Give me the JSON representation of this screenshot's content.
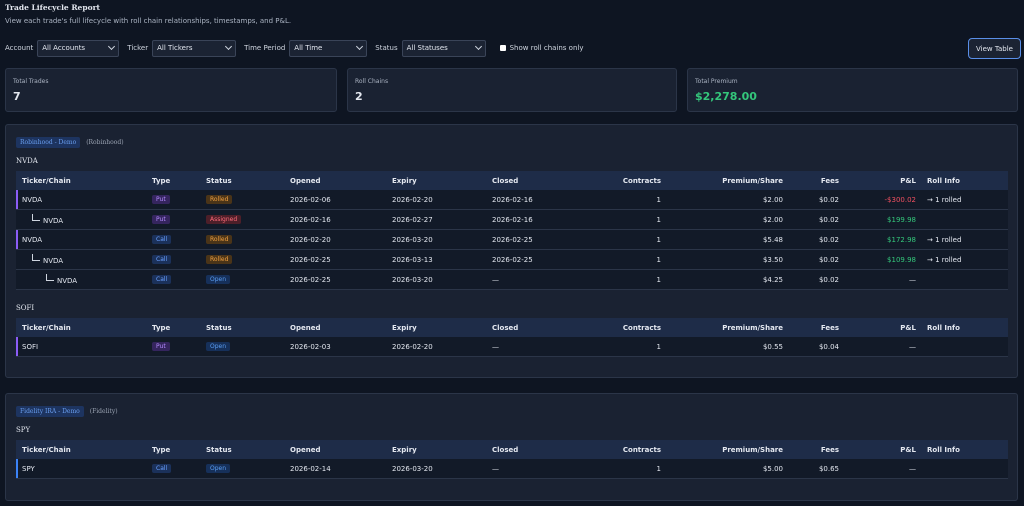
{
  "header": {
    "title": "Trade Lifecycle Report",
    "subtitle": "View each trade's full lifecycle with roll chain relationships, timestamps, and P&L."
  },
  "filters": [
    {
      "label": "Account",
      "value": "All Accounts"
    },
    {
      "label": "Ticker",
      "value": "All Tickers"
    },
    {
      "label": "Time Period",
      "value": "All Time"
    },
    {
      "label": "Status",
      "value": "All Statuses"
    }
  ],
  "checkbox": "Show roll chains only",
  "button": "View Table",
  "stats": [
    {
      "label": "Total Trades",
      "value": 7
    },
    {
      "label": "Roll Chains",
      "value": 2
    },
    {
      "label": "Total Premium",
      "value": "$2,278.00",
      "color": "#34c77b"
    }
  ],
  "columns": [
    "Ticker/Chain",
    "Type",
    "Status",
    "Opened",
    "Expiry",
    "Closed",
    "Contracts",
    "Premium/Share",
    "Fees",
    "P&L",
    "Roll Info"
  ],
  "badge_styles": {
    "Put": [
      "#35255e",
      "#b48cff"
    ],
    "Call": [
      "#1b315a",
      "#6aa0ff"
    ],
    "Rolled": [
      "#4a3418",
      "#f0a040"
    ],
    "Assigned": [
      "#4d1f29",
      "#ff6b7a"
    ],
    "Open": [
      "#16305a",
      "#5a9cf0"
    ]
  },
  "accounts": [
    {
      "name": "Robinhood - Demo",
      "broker": "(Robinhood)",
      "groups": [
        {
          "ticker": "NVDA",
          "rows": [
            {
              "accent": "#8b5cf6",
              "ticker": "NVDA",
              "type": "Put",
              "status": "Rolled",
              "opened": "2026-02-06",
              "expiry": "2026-02-20",
              "closed": "2026-02-16",
              "contracts": 1,
              "premium": "$2.00",
              "fees": "$0.02",
              "pnl": "-$300.02",
              "roll": "→ 1 rolled",
              "children": [
                {
                  "ticker": "NVDA",
                  "type": "Put",
                  "status": "Assigned",
                  "opened": "2026-02-16",
                  "expiry": "2026-02-27",
                  "closed": "2026-02-16",
                  "contracts": 1,
                  "premium": "$2.00",
                  "fees": "$0.02",
                  "pnl": "$199.98"
                }
              ]
            },
            {
              "accent": "#8b5cf6",
              "ticker": "NVDA",
              "type": "Call",
              "status": "Rolled",
              "opened": "2026-02-20",
              "expiry": "2026-03-20",
              "closed": "2026-02-25",
              "contracts": 1,
              "premium": "$5.48",
              "fees": "$0.02",
              "pnl": "$172.98",
              "roll": "→ 1 rolled",
              "children": [
                {
                  "ticker": "NVDA",
                  "type": "Call",
                  "status": "Rolled",
                  "opened": "2026-02-25",
                  "expiry": "2026-03-13",
                  "closed": "2026-02-25",
                  "contracts": 1,
                  "premium": "$3.50",
                  "fees": "$0.02",
                  "pnl": "$109.98",
                  "roll": "→ 1 rolled",
                  "children": [
                    {
                      "ticker": "NVDA",
                      "type": "Call",
                      "status": "Open",
                      "opened": "2026-02-25",
                      "expiry": "2026-03-20",
                      "closed": "—",
                      "contracts": 1,
                      "premium": "$4.25",
                      "fees": "$0.02",
                      "pnl": "—"
                    }
                  ]
                }
              ]
            }
          ]
        },
        {
          "ticker": "SOFI",
          "rows": [
            {
              "accent": "#8b5cf6",
              "ticker": "SOFI",
              "type": "Put",
              "status": "Open",
              "opened": "2026-02-03",
              "expiry": "2026-02-20",
              "closed": "—",
              "contracts": 1,
              "premium": "$0.55",
              "fees": "$0.04",
              "pnl": "—"
            }
          ]
        }
      ]
    },
    {
      "name": "Fidelity IRA - Demo",
      "broker": "(Fidelity)",
      "groups": [
        {
          "ticker": "SPY",
          "rows": [
            {
              "accent": "#3b82f6",
              "ticker": "SPY",
              "type": "Call",
              "status": "Open",
              "opened": "2026-02-14",
              "expiry": "2026-03-20",
              "closed": "—",
              "contracts": 1,
              "premium": "$5.00",
              "fees": "$0.65",
              "pnl": "—"
            }
          ]
        }
      ]
    }
  ]
}
